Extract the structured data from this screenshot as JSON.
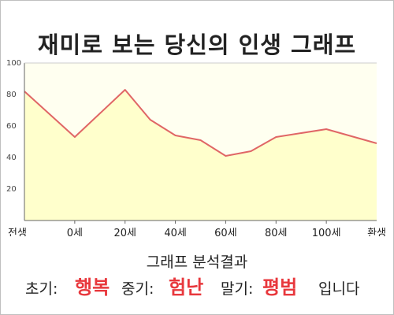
{
  "title": "재미로 보는 당신의 인생 그래프",
  "subtitle": "그래프 분석결과",
  "result": {
    "early_label": "초기:",
    "early_value": "행복",
    "mid_label": "중기:",
    "mid_value": "험난",
    "late_label": "말기:",
    "late_value": "평범",
    "ending": "입니다"
  },
  "colors": {
    "line": "#e06666",
    "fill": "#ffffcc",
    "plot_bg": "#fffff0",
    "highlight": "#e8383d"
  },
  "chart_data": {
    "type": "area",
    "title": "재미로 보는 당신의 인생 그래프",
    "xlabel": "",
    "ylabel": "",
    "ylim": [
      0,
      100
    ],
    "yticks": [
      20,
      40,
      60,
      80,
      100
    ],
    "grid": false,
    "categories": [
      "전생",
      "0세",
      "20세",
      "40세",
      "60세",
      "80세",
      "100세",
      "환생"
    ],
    "x": [
      -20,
      0,
      10,
      20,
      30,
      40,
      50,
      60,
      70,
      80,
      100,
      120
    ],
    "series": [
      {
        "values": [
          82,
          53,
          68,
          83,
          64,
          54,
          51,
          41,
          44,
          53,
          58,
          49
        ]
      }
    ]
  }
}
